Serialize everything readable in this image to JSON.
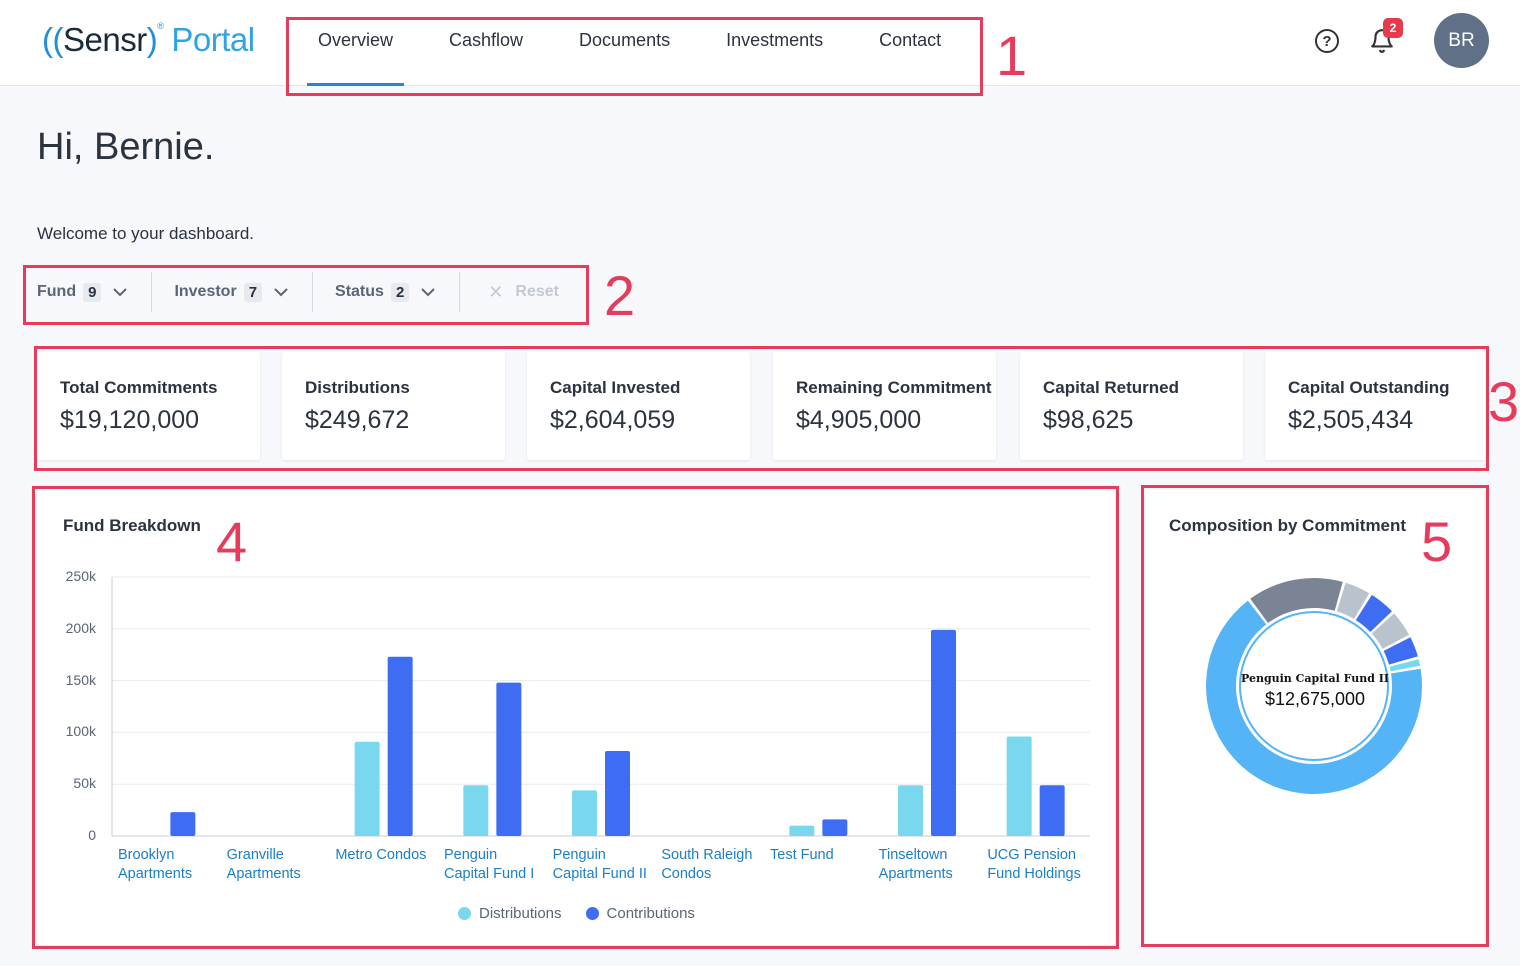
{
  "header": {
    "logo": {
      "paren_open": "((",
      "brand": "Sensr",
      "paren_close": ")",
      "registered": "®",
      "product": "Portal"
    },
    "nav": [
      "Overview",
      "Cashflow",
      "Documents",
      "Investments",
      "Contact"
    ],
    "active_nav": "Overview",
    "help_icon": "?",
    "notification_count": "2",
    "avatar_initials": "BR"
  },
  "greeting": "Hi, Bernie.",
  "welcome": "Welcome to your dashboard.",
  "filters": [
    {
      "label": "Fund",
      "count": "9"
    },
    {
      "label": "Investor",
      "count": "7"
    },
    {
      "label": "Status",
      "count": "2"
    }
  ],
  "reset_label": "Reset",
  "kpis": [
    {
      "label": "Total Commitments",
      "value": "$19,120,000"
    },
    {
      "label": "Distributions",
      "value": "$249,672"
    },
    {
      "label": "Capital Invested",
      "value": "$2,604,059"
    },
    {
      "label": "Remaining Commitment",
      "value": "$4,905,000"
    },
    {
      "label": "Capital Returned",
      "value": "$98,625"
    },
    {
      "label": "Capital Outstanding",
      "value": "$2,505,434"
    }
  ],
  "annotations": [
    "1",
    "2",
    "3",
    "4",
    "5"
  ],
  "fund_breakdown": {
    "title": "Fund Breakdown"
  },
  "composition": {
    "title": "Composition by Commitment",
    "center_name": "Penguin Capital Fund II",
    "center_value": "$12,675,000"
  },
  "chart_data": [
    {
      "type": "bar",
      "title": "Fund Breakdown",
      "categories": [
        [
          "Brooklyn",
          "Apartments"
        ],
        [
          "Granville",
          "Apartments"
        ],
        [
          "Metro Condos"
        ],
        [
          "Penguin",
          "Capital Fund I"
        ],
        [
          "Penguin",
          "Capital Fund II"
        ],
        [
          "South Raleigh",
          "Condos"
        ],
        [
          "Test Fund"
        ],
        [
          "Tinseltown",
          "Apartments"
        ],
        [
          "UCG Pension",
          "Fund Holdings"
        ]
      ],
      "series": [
        {
          "name": "Distributions",
          "color": "#7ad8ee",
          "values": [
            0,
            0,
            91000,
            49000,
            44000,
            0,
            10000,
            49000,
            96000
          ]
        },
        {
          "name": "Contributions",
          "color": "#3e6df3",
          "values": [
            23000,
            0,
            173000,
            148000,
            82000,
            0,
            16000,
            199000,
            49000
          ]
        }
      ],
      "y_ticks": [
        "250k",
        "200k",
        "150k",
        "100k",
        "50k",
        "0"
      ],
      "ylim": [
        0,
        250000
      ],
      "legend": "bottom",
      "grid": true
    },
    {
      "type": "pie",
      "title": "Composition by Commitment",
      "center_label": "Penguin Capital Fund II",
      "center_value": "$12,675,000",
      "slices": [
        {
          "value": 66.3,
          "color": "#55b4f5"
        },
        {
          "value": 14.5,
          "color": "#7a8494"
        },
        {
          "value": 4.2,
          "color": "#b9c3cd"
        },
        {
          "value": 4.2,
          "color": "#3e6df3"
        },
        {
          "value": 4.2,
          "color": "#b9c3cd"
        },
        {
          "value": 3.4,
          "color": "#3e6df3"
        },
        {
          "value": 1.4,
          "color": "#7ad8ee"
        }
      ],
      "legend": "none"
    }
  ]
}
